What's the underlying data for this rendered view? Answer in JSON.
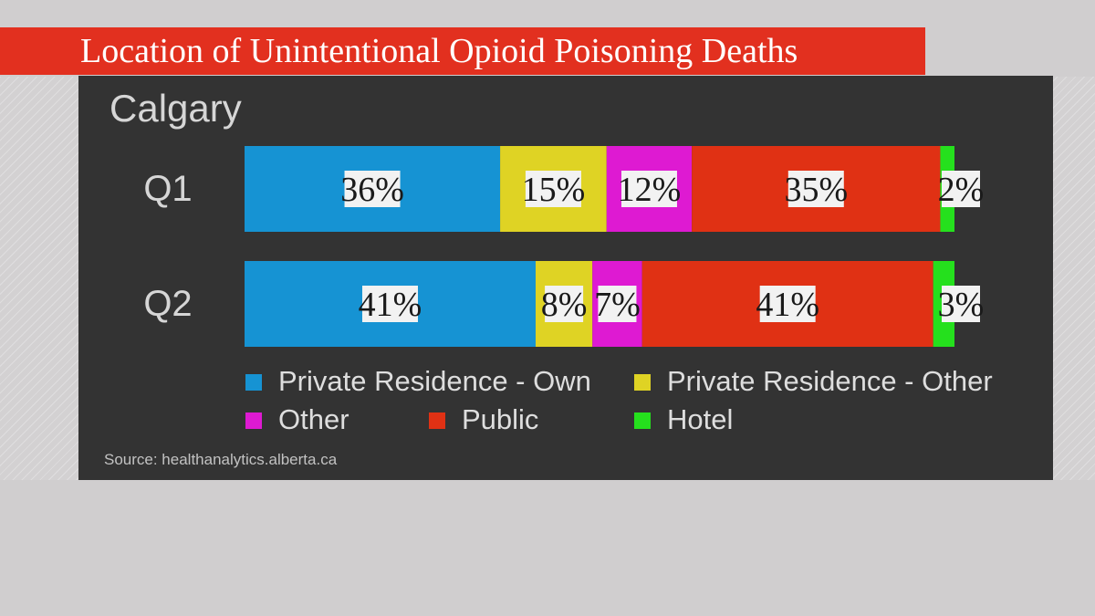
{
  "title": "Location of Unintentional Opioid Poisoning Deaths",
  "subtitle": "Calgary",
  "source": "Source: healthanalytics.alberta.ca",
  "chart_data": {
    "type": "bar",
    "orientation": "horizontal",
    "stacked": true,
    "categories": [
      "Q1",
      "Q2"
    ],
    "series": [
      {
        "name": "Private Residence - Own",
        "color": "#1693d3",
        "values": [
          36,
          41
        ],
        "labels": [
          "36%",
          "41%"
        ]
      },
      {
        "name": "Private Residence - Other",
        "color": "#dfd324",
        "values": [
          15,
          8
        ],
        "labels": [
          "15%",
          "8%"
        ]
      },
      {
        "name": "Other",
        "color": "#de1ad2",
        "values": [
          12,
          7
        ],
        "labels": [
          "12%",
          "7%"
        ]
      },
      {
        "name": "Public",
        "color": "#e03114",
        "values": [
          35,
          41
        ],
        "labels": [
          "35%",
          "41%"
        ]
      },
      {
        "name": "Hotel",
        "color": "#25e01d",
        "values": [
          2,
          3
        ],
        "labels": [
          "2%",
          "3%"
        ]
      }
    ],
    "xlim": [
      0,
      100
    ],
    "legend_position": "bottom"
  }
}
